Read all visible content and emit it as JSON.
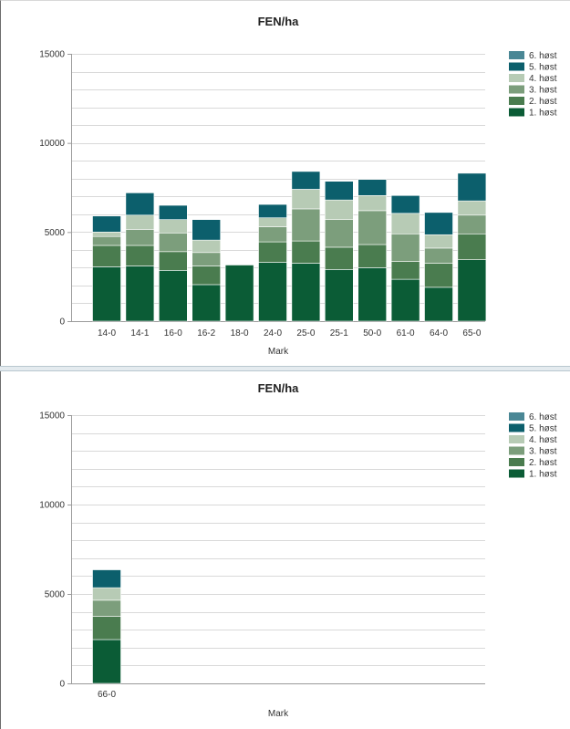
{
  "charts": [
    {
      "type": "bar",
      "stacked": true,
      "title": "FEN/ha",
      "xlabel": "Mark",
      "ylabel": "",
      "ylim": [
        0,
        15000
      ],
      "yticks": [
        0,
        5000,
        10000,
        15000
      ],
      "grid": true,
      "legend": "top-right",
      "legend_order": [
        "6. høst",
        "5. høst",
        "4. høst",
        "3. høst",
        "2. høst",
        "1. høst"
      ],
      "colors": {
        "1. høst": "#0b5c36",
        "2. høst": "#4a7c4f",
        "3. høst": "#7c9e7c",
        "4. høst": "#b7cbb5",
        "5. høst": "#0c5f6c",
        "6. høst": "#4a8795"
      },
      "categories": [
        "14-0",
        "14-1",
        "16-0",
        "16-2",
        "18-0",
        "24-0",
        "25-0",
        "25-1",
        "50-0",
        "61-0",
        "64-0",
        "65-0"
      ],
      "series": [
        {
          "name": "1. høst",
          "values": [
            3050,
            3100,
            2850,
            2050,
            3150,
            3300,
            3250,
            2900,
            3000,
            2350,
            1900,
            3450
          ]
        },
        {
          "name": "2. høst",
          "values": [
            1200,
            1150,
            1050,
            1050,
            0,
            1150,
            1250,
            1250,
            1300,
            1000,
            1350,
            1450
          ]
        },
        {
          "name": "3. høst",
          "values": [
            500,
            900,
            1050,
            750,
            0,
            850,
            1800,
            1550,
            1900,
            1550,
            850,
            1050
          ]
        },
        {
          "name": "4. høst",
          "values": [
            250,
            800,
            750,
            700,
            0,
            500,
            1100,
            1100,
            850,
            1150,
            750,
            800
          ]
        },
        {
          "name": "5. høst",
          "values": [
            900,
            1250,
            800,
            1150,
            0,
            750,
            1000,
            1050,
            900,
            1000,
            1250,
            1550
          ]
        },
        {
          "name": "6. høst",
          "values": [
            0,
            0,
            0,
            0,
            0,
            0,
            0,
            0,
            0,
            0,
            0,
            0
          ]
        }
      ]
    },
    {
      "type": "bar",
      "stacked": true,
      "title": "FEN/ha",
      "xlabel": "Mark",
      "ylabel": "",
      "ylim": [
        0,
        15000
      ],
      "yticks": [
        0,
        5000,
        10000,
        15000
      ],
      "grid": true,
      "legend": "top-right",
      "legend_order": [
        "6. høst",
        "5. høst",
        "4. høst",
        "3. høst",
        "2. høst",
        "1. høst"
      ],
      "colors": {
        "1. høst": "#0b5c36",
        "2. høst": "#4a7c4f",
        "3. høst": "#7c9e7c",
        "4. høst": "#b7cbb5",
        "5. høst": "#0c5f6c",
        "6. høst": "#4a8795"
      },
      "categories": [
        "66-0"
      ],
      "series": [
        {
          "name": "1. høst",
          "values": [
            2450
          ]
        },
        {
          "name": "2. høst",
          "values": [
            1300
          ]
        },
        {
          "name": "3. høst",
          "values": [
            900
          ]
        },
        {
          "name": "4. høst",
          "values": [
            700
          ]
        },
        {
          "name": "5. høst",
          "values": [
            1000
          ]
        },
        {
          "name": "6. høst",
          "values": [
            0
          ]
        }
      ]
    }
  ]
}
